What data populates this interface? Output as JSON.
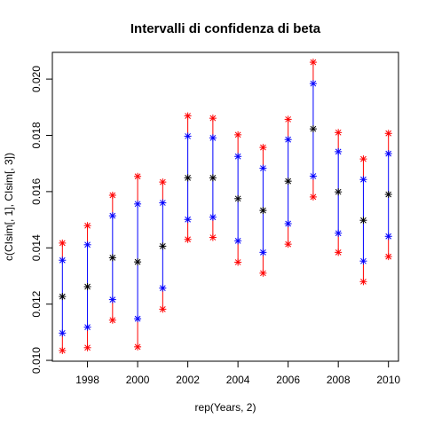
{
  "chart_data": {
    "type": "scatter",
    "title": "Intervalli di confidenza di beta",
    "xlabel": "rep(Years, 2)",
    "ylabel": "c(CIsim[, 1], CIsim[, 3])",
    "xlim": [
      1996.6,
      2010.4
    ],
    "ylim": [
      0.00997,
      0.02095
    ],
    "xticks": [
      "1998",
      "2000",
      "2002",
      "2004",
      "2006",
      "2008",
      "2010"
    ],
    "yticks": [
      "0.010",
      "0.012",
      "0.014",
      "0.016",
      "0.018",
      "0.020"
    ],
    "grid": false,
    "legend": "none",
    "marker": "asterisk",
    "colors": {
      "outer": "#ff0000",
      "inner": "#0000ff",
      "center": "#000000"
    },
    "years": [
      1997,
      1998,
      1999,
      2000,
      2001,
      2002,
      2003,
      2004,
      2005,
      2006,
      2007,
      2008,
      2009,
      2010
    ],
    "series": [
      {
        "values": [
          0.01035,
          0.01045,
          0.01143,
          0.01048,
          0.01182,
          0.0143,
          0.01437,
          0.01349,
          0.0131,
          0.01413,
          0.01581,
          0.01384,
          0.0128,
          0.01369
        ]
      },
      {
        "values": [
          0.01097,
          0.01118,
          0.01216,
          0.01148,
          0.01257,
          0.01501,
          0.01509,
          0.01425,
          0.01384,
          0.01486,
          0.01655,
          0.01452,
          0.01353,
          0.01441
        ]
      },
      {
        "values": [
          0.01227,
          0.01262,
          0.01365,
          0.0135,
          0.01406,
          0.01649,
          0.01649,
          0.01575,
          0.01533,
          0.01637,
          0.01823,
          0.01599,
          0.01498,
          0.0159
        ]
      },
      {
        "values": [
          0.01356,
          0.01411,
          0.01514,
          0.01556,
          0.0156,
          0.01797,
          0.01791,
          0.01725,
          0.01683,
          0.01785,
          0.01984,
          0.01742,
          0.01643,
          0.01735
        ]
      },
      {
        "values": [
          0.01417,
          0.01479,
          0.01587,
          0.01654,
          0.01634,
          0.01869,
          0.01861,
          0.01802,
          0.01757,
          0.01857,
          0.0206,
          0.0181,
          0.01716,
          0.01807
        ]
      }
    ]
  }
}
